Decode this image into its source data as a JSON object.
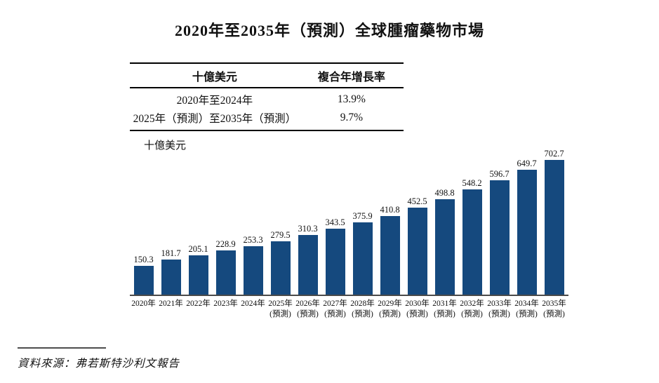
{
  "title": "2020年至2035年（預測）全球腫瘤藥物市場",
  "summary_table": {
    "headers": [
      "十億美元",
      "複合年增長率"
    ],
    "rows": [
      {
        "period": "2020年至2024年",
        "cagr": "13.9%"
      },
      {
        "period": "2025年（預測）至2035年（預測）",
        "cagr": "9.7%"
      }
    ]
  },
  "chart_data": {
    "type": "bar",
    "title": "2020年至2035年（預測）全球腫瘤藥物市場",
    "ylabel": "十億美元",
    "xlabel": "",
    "categories": [
      "2020年",
      "2021年",
      "2022年",
      "2023年",
      "2024年",
      "2025年",
      "2026年",
      "2027年",
      "2028年",
      "2029年",
      "2030年",
      "2031年",
      "2032年",
      "2033年",
      "2034年",
      "2035年"
    ],
    "forecast_label": "(預測)",
    "forecast_from_index": 5,
    "values": [
      150.3,
      181.7,
      205.1,
      228.9,
      253.3,
      279.5,
      310.3,
      343.5,
      375.9,
      410.8,
      452.5,
      498.8,
      548.2,
      596.7,
      649.7,
      702.7
    ],
    "ylim": [
      0,
      760
    ],
    "bar_color": "#15497E",
    "grid": false,
    "legend_position": "none"
  },
  "source": {
    "label": "資料來源：弗若斯特沙利文報告"
  }
}
